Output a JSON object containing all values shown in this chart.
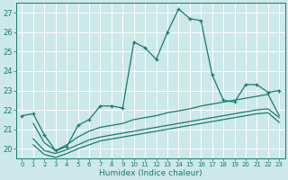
{
  "xlabel": "Humidex (Indice chaleur)",
  "background_color": "#cce8e8",
  "grid_color": "#b0d8d8",
  "line_color": "#1a7a6e",
  "xlim": [
    -0.5,
    23.5
  ],
  "ylim": [
    19.5,
    27.5
  ],
  "yticks": [
    20,
    21,
    22,
    23,
    24,
    25,
    26,
    27
  ],
  "xticks": [
    0,
    1,
    2,
    3,
    4,
    5,
    6,
    7,
    8,
    9,
    10,
    11,
    12,
    13,
    14,
    15,
    16,
    17,
    18,
    19,
    20,
    21,
    22,
    23
  ],
  "main_series_x": [
    0,
    1,
    2,
    3,
    4,
    5,
    6,
    7,
    8,
    9,
    10,
    11,
    12,
    13,
    14,
    15,
    16,
    17,
    18,
    19,
    20,
    21,
    22,
    23
  ],
  "main_series_y": [
    21.7,
    21.8,
    20.7,
    19.9,
    20.1,
    21.2,
    21.5,
    22.2,
    22.2,
    22.1,
    25.5,
    25.2,
    24.6,
    26.0,
    27.2,
    26.7,
    26.6,
    23.8,
    22.5,
    22.4,
    23.3,
    23.3,
    22.9,
    23.0
  ],
  "lower_line1_x": [
    1,
    2,
    3,
    4,
    5,
    6,
    7,
    8,
    9,
    10,
    11,
    12,
    13,
    14,
    15,
    16,
    17,
    18,
    19,
    20,
    21,
    22,
    23
  ],
  "lower_line1_y": [
    21.3,
    20.3,
    19.9,
    20.2,
    20.6,
    20.9,
    21.1,
    21.2,
    21.3,
    21.5,
    21.6,
    21.7,
    21.85,
    21.95,
    22.05,
    22.2,
    22.3,
    22.4,
    22.5,
    22.6,
    22.7,
    22.8,
    21.7
  ],
  "lower_line2_x": [
    1,
    2,
    3,
    4,
    5,
    6,
    7,
    8,
    9,
    10,
    11,
    12,
    13,
    14,
    15,
    16,
    17,
    18,
    19,
    20,
    21,
    22,
    23
  ],
  "lower_line2_y": [
    20.5,
    19.9,
    19.75,
    19.95,
    20.2,
    20.45,
    20.6,
    20.7,
    20.8,
    20.9,
    21.0,
    21.1,
    21.2,
    21.3,
    21.4,
    21.5,
    21.6,
    21.7,
    21.8,
    21.9,
    22.0,
    22.05,
    21.6
  ],
  "lower_line3_x": [
    1,
    2,
    3,
    4,
    5,
    6,
    7,
    8,
    9,
    10,
    11,
    12,
    13,
    14,
    15,
    16,
    17,
    18,
    19,
    20,
    21,
    22,
    23
  ],
  "lower_line3_y": [
    20.2,
    19.7,
    19.55,
    19.75,
    20.0,
    20.2,
    20.4,
    20.5,
    20.6,
    20.7,
    20.8,
    20.9,
    21.0,
    21.1,
    21.2,
    21.3,
    21.4,
    21.5,
    21.6,
    21.7,
    21.8,
    21.85,
    21.35
  ]
}
